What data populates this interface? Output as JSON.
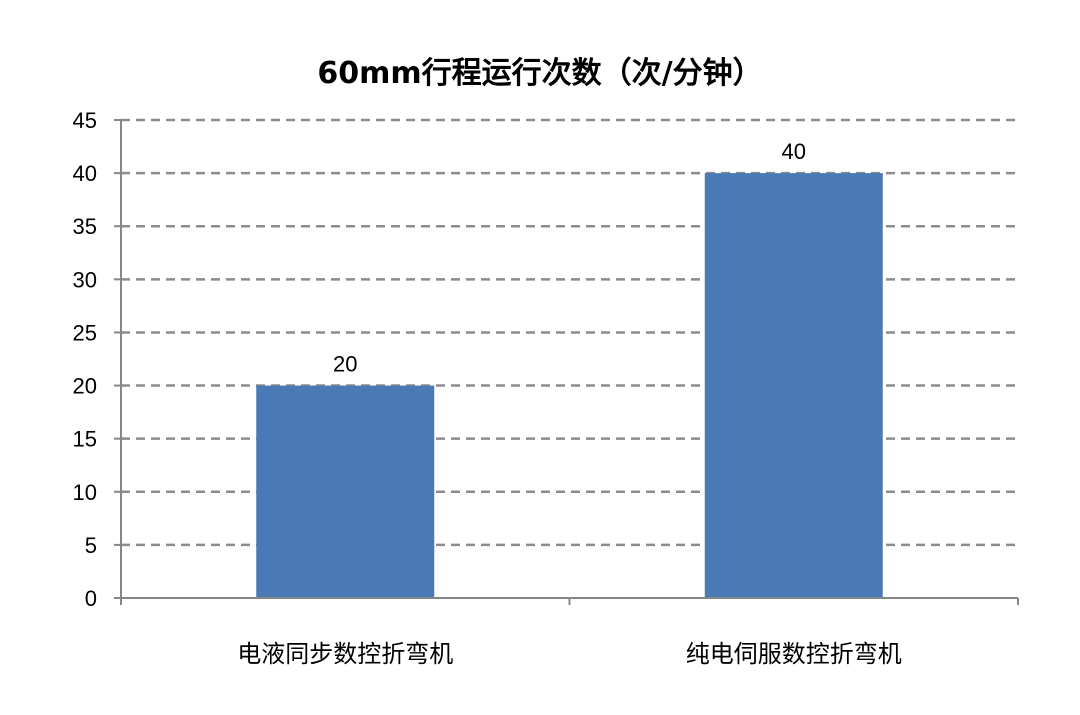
{
  "chart_data": {
    "type": "bar",
    "title": "60mm行程运行次数（次/分钟）",
    "categories": [
      "电液同步数控折弯机",
      "纯电伺服数控折弯机"
    ],
    "series": [
      {
        "values": [
          20,
          40
        ]
      }
    ],
    "ylim": [
      0,
      45
    ],
    "yticks": [
      0,
      5,
      10,
      15,
      20,
      25,
      30,
      35,
      40,
      45
    ],
    "grid": true,
    "grid_style": "dashed",
    "legend": "none",
    "data_labels": true,
    "colors": {
      "bar": "#4A7AB5",
      "grid": "#8C8C8C",
      "axis": "#868686"
    }
  }
}
